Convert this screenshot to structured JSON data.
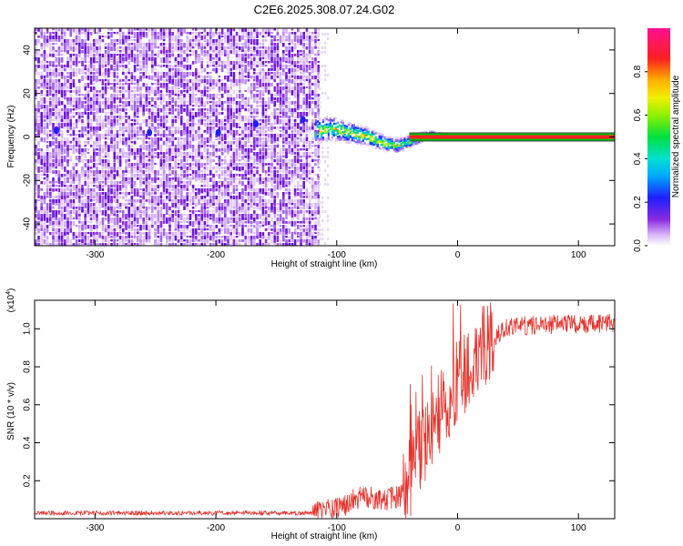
{
  "title": "C2E6.2025.308.07.24.G02",
  "chart_data": [
    {
      "type": "heatmap",
      "xlabel": "Height of straight line (km)",
      "ylabel": "Frequency (Hz)",
      "xlim": [
        -350,
        130
      ],
      "ylim": [
        -50,
        50
      ],
      "xticks": [
        -300,
        -200,
        -100,
        0,
        100
      ],
      "xtick_labels": [
        "-300",
        "-200",
        "-100",
        "0",
        "100"
      ],
      "yticks": [
        -40,
        -20,
        0,
        20,
        40
      ],
      "ytick_labels": [
        "-40",
        "-20",
        "0",
        "20",
        "40"
      ],
      "noise_region_km": [
        -350,
        -115
      ],
      "signal_frequency_hz": 0,
      "signal_track": [
        {
          "x": -118,
          "y": 3
        },
        {
          "x": -105,
          "y": 4
        },
        {
          "x": -90,
          "y": 2
        },
        {
          "x": -75,
          "y": 0
        },
        {
          "x": -60,
          "y": -3
        },
        {
          "x": -50,
          "y": -4
        },
        {
          "x": -40,
          "y": -2
        },
        {
          "x": -25,
          "y": 1
        },
        {
          "x": -10,
          "y": 0
        },
        {
          "x": 0,
          "y": 0
        },
        {
          "x": 130,
          "y": 0
        }
      ],
      "colorbar": {
        "label": "Normalized spectral amplitude",
        "range": [
          0,
          1
        ],
        "ticks": [
          0.0,
          0.2,
          0.4,
          0.6,
          0.8
        ],
        "tick_labels": [
          "0.0",
          "0.2",
          "0.4",
          "0.6",
          "0.8"
        ]
      }
    },
    {
      "type": "line",
      "series": [
        {
          "name": "SNR",
          "color": "#e8322c"
        }
      ],
      "xlabel": "Height of straight line (km)",
      "ylabel": "SNR (10 * v/v)",
      "scale_label": "(x10",
      "scale_exponent": "4",
      "scale_close": ")",
      "xlim": [
        -350,
        130
      ],
      "ylim": [
        0,
        1.15
      ],
      "xticks": [
        -300,
        -200,
        -100,
        0,
        100
      ],
      "xtick_labels": [
        "-300",
        "-200",
        "-100",
        "0",
        "100"
      ],
      "yticks": [
        0.2,
        0.4,
        0.6,
        0.8,
        1.0
      ],
      "ytick_labels": [
        "0.2",
        "0.4",
        "0.6",
        "0.8",
        "1.0"
      ],
      "profile": [
        {
          "x": -350,
          "y": 0.03
        },
        {
          "x": -120,
          "y": 0.03
        },
        {
          "x": -100,
          "y": 0.05
        },
        {
          "x": -80,
          "y": 0.12
        },
        {
          "x": -60,
          "y": 0.1
        },
        {
          "x": -45,
          "y": 0.12
        },
        {
          "x": -35,
          "y": 0.3
        },
        {
          "x": -20,
          "y": 0.5
        },
        {
          "x": -10,
          "y": 0.6
        },
        {
          "x": 0,
          "y": 0.72
        },
        {
          "x": 20,
          "y": 0.9
        },
        {
          "x": 40,
          "y": 1.0
        },
        {
          "x": 60,
          "y": 1.02
        },
        {
          "x": 130,
          "y": 1.03
        }
      ]
    }
  ]
}
